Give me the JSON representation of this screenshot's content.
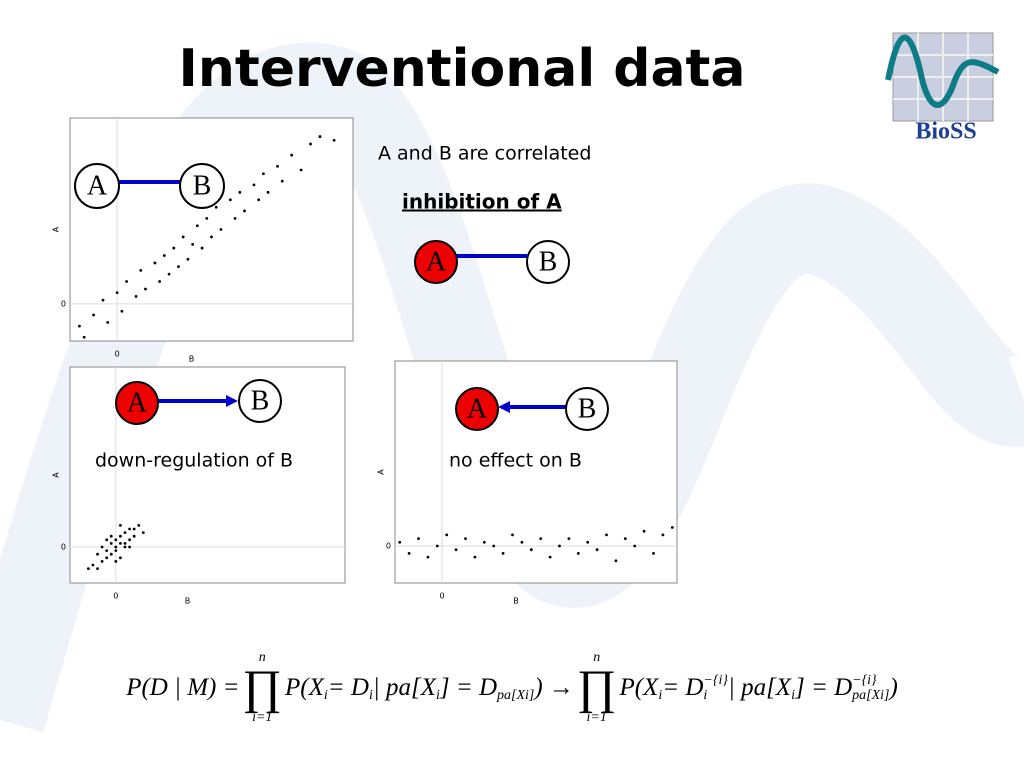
{
  "title": "Interventional data",
  "logo": "BioSS",
  "nodes": [
    "A",
    "B"
  ],
  "note_correlated": "A and B are correlated",
  "note_inhibition": "inhibition of A",
  "note_down": "down-regulation of B",
  "note_none": "no effect on B",
  "plots": [
    {
      "xlabel": "B",
      "ylabel": "A",
      "xticks": [
        0
      ],
      "yticks": [
        0
      ],
      "xlim": [
        -1,
        5
      ],
      "ylim": [
        -1,
        5
      ],
      "x": [
        -0.8,
        -0.7,
        -0.5,
        -0.3,
        -0.2,
        0,
        0.1,
        0.2,
        0.4,
        0.5,
        0.6,
        0.8,
        0.9,
        1.0,
        1.1,
        1.2,
        1.3,
        1.4,
        1.5,
        1.6,
        1.7,
        1.8,
        1.9,
        2.0,
        2.1,
        2.2,
        2.4,
        2.5,
        2.6,
        2.7,
        2.9,
        3.0,
        3.1,
        3.2,
        3.4,
        3.5,
        3.7,
        3.9,
        4.1,
        4.3,
        4.6
      ],
      "y": [
        -0.6,
        -0.9,
        -0.3,
        0.1,
        -0.5,
        0.3,
        -0.2,
        0.6,
        0.2,
        0.9,
        0.4,
        1.1,
        0.6,
        1.3,
        0.8,
        1.5,
        1.0,
        1.8,
        1.2,
        1.6,
        2.1,
        1.5,
        2.3,
        1.8,
        2.6,
        2.0,
        2.8,
        2.3,
        3.0,
        2.5,
        3.2,
        2.8,
        3.5,
        3.0,
        3.7,
        3.3,
        4.0,
        3.6,
        4.3,
        4.5,
        4.4
      ]
    },
    {
      "xlabel": "B",
      "ylabel": "A",
      "xticks": [
        0
      ],
      "yticks": [
        0
      ],
      "xlim": [
        -1,
        5
      ],
      "ylim": [
        -1,
        5
      ],
      "x": [
        -0.5,
        -0.4,
        -0.3,
        -0.3,
        -0.2,
        -0.2,
        -0.1,
        -0.1,
        0,
        0,
        0,
        0.1,
        0.1,
        0.2,
        0.2,
        0.3,
        0.3,
        0.4,
        0.5,
        -0.6,
        -0.4,
        0.1,
        0.2,
        -0.1,
        0,
        0.3,
        -0.2,
        0.4,
        0.6,
        0.1
      ],
      "y": [
        -0.5,
        -0.2,
        -0.4,
        0,
        -0.1,
        -0.3,
        0.1,
        -0.2,
        0,
        0.2,
        -0.1,
        0.1,
        0.3,
        0,
        0.4,
        0.2,
        0.5,
        0.3,
        0.6,
        -0.6,
        -0.6,
        -0.3,
        0.1,
        0.3,
        -0.4,
        0,
        0.2,
        0.5,
        0.4,
        0.6
      ]
    },
    {
      "xlabel": "B",
      "ylabel": "A",
      "xticks": [
        0
      ],
      "yticks": [
        0
      ],
      "xlim": [
        -1,
        5
      ],
      "ylim": [
        -1,
        5
      ],
      "x": [
        -0.9,
        -0.7,
        -0.5,
        -0.3,
        -0.1,
        0.1,
        0.3,
        0.5,
        0.7,
        0.9,
        1.1,
        1.3,
        1.5,
        1.7,
        1.9,
        2.1,
        2.3,
        2.5,
        2.7,
        2.9,
        3.1,
        3.3,
        3.5,
        3.7,
        3.9,
        4.1,
        4.3,
        4.5,
        4.7,
        4.9
      ],
      "y": [
        0.1,
        -0.2,
        0.2,
        -0.3,
        0,
        0.3,
        -0.1,
        0.2,
        -0.3,
        0.1,
        0,
        -0.2,
        0.3,
        0.1,
        -0.1,
        0.2,
        -0.3,
        0,
        0.2,
        -0.2,
        0.1,
        -0.1,
        0.3,
        -0.4,
        0.2,
        0,
        0.4,
        -0.2,
        0.3,
        0.5
      ]
    }
  ],
  "formula": [
    {
      "t": "P(D | M) = "
    },
    {
      "op": "∏",
      "over": "n",
      "under": "i=1"
    },
    {
      "t": "P(X",
      "sub": "i"
    },
    {
      "t": " = D",
      "sub": "i"
    },
    {
      "t": " | pa[X",
      "sub": "i"
    },
    {
      "t": "] = D",
      "sub": "pa[Xi]"
    },
    {
      "t": ") → "
    },
    {
      "op": "∏",
      "over": "n",
      "under": "i=1"
    },
    {
      "t": "P(X",
      "sub": "i"
    },
    {
      "t": " = D",
      "sub": "i",
      "sup": "−{i}"
    },
    {
      "t": " | pa[X",
      "sub": "i"
    },
    {
      "t": "] = D",
      "sub": "pa[Xi]",
      "sup": "−{i}"
    },
    {
      "t": ")"
    }
  ]
}
